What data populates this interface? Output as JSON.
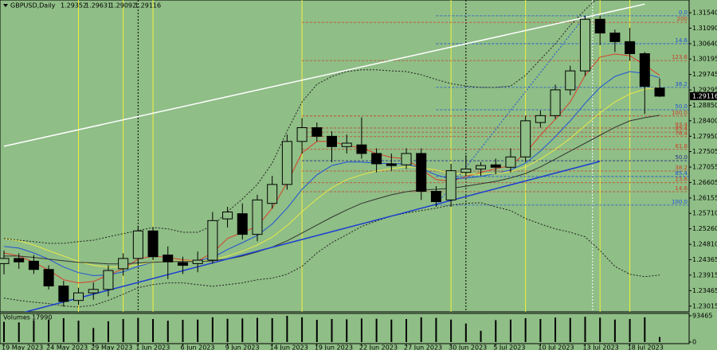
{
  "chart_data": {
    "type": "candlestick",
    "title": "GBPUSD,Daily",
    "categories": [
      "19 May 2023",
      null,
      null,
      "24 May 2023",
      null,
      null,
      "29 May 2023",
      null,
      null,
      "1 Jun 2023",
      null,
      null,
      "6 Jun 2023",
      null,
      null,
      "9 Jun 2023",
      null,
      null,
      "14 Jun 2023",
      null,
      null,
      "19 Jun 2023",
      null,
      null,
      "22 Jun 2023",
      null,
      null,
      "27 Jun 2023",
      null,
      null,
      "30 Jun 2023",
      null,
      null,
      "5 Jul 2023",
      null,
      null,
      "10 Jul 2023",
      null,
      null,
      "13 Jul 2023",
      null,
      null,
      "18 Jul 2023",
      null,
      null
    ],
    "open": [
      1.2425,
      1.244,
      1.2432,
      1.2408,
      1.236,
      1.2318,
      1.234,
      1.235,
      1.241,
      1.244,
      1.252,
      1.245,
      1.2428,
      1.2425,
      1.2435,
      1.2555,
      1.257,
      1.251,
      1.26,
      1.2655,
      1.278,
      1.282,
      1.2795,
      1.2765,
      1.277,
      1.2745,
      1.2715,
      1.2712,
      1.2745,
      1.2635,
      1.261,
      1.269,
      1.27,
      1.2712,
      1.2705,
      1.2735,
      1.2835,
      1.2855,
      1.293,
      1.2985,
      1.3135,
      1.3095,
      1.307,
      1.3035,
      1.29352
    ],
    "high": [
      1.2463,
      1.2455,
      1.245,
      1.242,
      1.2375,
      1.2355,
      1.237,
      1.242,
      1.2455,
      1.2535,
      1.253,
      1.2475,
      1.2445,
      1.246,
      1.2575,
      1.259,
      1.26,
      1.2625,
      1.268,
      1.28,
      1.2848,
      1.2835,
      1.281,
      1.28,
      1.285,
      1.276,
      1.2745,
      1.276,
      1.276,
      1.265,
      1.2715,
      1.274,
      1.272,
      1.273,
      1.276,
      1.2855,
      1.287,
      1.2945,
      1.3,
      1.3145,
      1.3145,
      1.3105,
      1.311,
      1.304,
      1.29631
    ],
    "low": [
      1.2394,
      1.241,
      1.2395,
      1.235,
      1.23,
      1.2305,
      1.232,
      1.233,
      1.239,
      1.242,
      1.2435,
      1.238,
      1.2395,
      1.24,
      1.2425,
      1.253,
      1.2495,
      1.249,
      1.2585,
      1.264,
      1.2745,
      1.278,
      1.272,
      1.2745,
      1.273,
      1.269,
      1.2695,
      1.27,
      1.261,
      1.259,
      1.259,
      1.268,
      1.268,
      1.2685,
      1.269,
      1.272,
      1.282,
      1.2845,
      1.2915,
      1.297,
      1.306,
      1.304,
      1.3015,
      1.286,
      1.29092
    ],
    "close": [
      1.244,
      1.243,
      1.2408,
      1.236,
      1.2315,
      1.234,
      1.235,
      1.2405,
      1.244,
      1.252,
      1.2445,
      1.243,
      1.242,
      1.2435,
      1.255,
      1.2575,
      1.251,
      1.261,
      1.2655,
      1.278,
      1.282,
      1.2795,
      1.2765,
      1.2775,
      1.2745,
      1.2715,
      1.271,
      1.2745,
      1.2635,
      1.2605,
      1.2695,
      1.27,
      1.271,
      1.2705,
      1.2735,
      1.284,
      1.2855,
      1.293,
      1.2985,
      1.3135,
      1.3095,
      1.307,
      1.3035,
      1.294,
      1.29116
    ],
    "up_color": "#8fbe86",
    "down_color": "#000000",
    "ylim": [
      1.2278,
      1.3191
    ],
    "yticks": [
      {
        "value": 1.3154,
        "label": "1.31540"
      },
      {
        "value": 1.3109,
        "label": "1.31090"
      },
      {
        "value": 1.3064,
        "label": "1.30640"
      },
      {
        "value": 1.30195,
        "label": "1.30195"
      },
      {
        "value": 1.29745,
        "label": "1.29745"
      },
      {
        "value": 1.29295,
        "label": "1.29295"
      },
      {
        "value": 1.2885,
        "label": "1.28850"
      },
      {
        "value": 1.284,
        "label": "1.28400"
      },
      {
        "value": 1.2795,
        "label": "1.27950"
      },
      {
        "value": 1.27505,
        "label": "1.27505"
      },
      {
        "value": 1.27055,
        "label": "1.27055"
      },
      {
        "value": 1.26605,
        "label": "1.26605"
      },
      {
        "value": 1.26155,
        "label": "1.26155"
      },
      {
        "value": 1.2571,
        "label": "1.25710"
      },
      {
        "value": 1.2526,
        "label": "1.25260"
      },
      {
        "value": 1.2481,
        "label": "1.24810"
      },
      {
        "value": 1.24365,
        "label": "1.24365"
      },
      {
        "value": 1.23915,
        "label": "1.23915"
      },
      {
        "value": 1.23465,
        "label": "1.23465"
      },
      {
        "value": 1.23015,
        "label": "1.23015"
      }
    ],
    "indicators": [
      {
        "color": "#d8402c",
        "style": "solid",
        "values": [
          1.2456,
          1.2447,
          1.2429,
          1.2406,
          1.2378,
          1.2369,
          1.2373,
          1.2392,
          1.241,
          1.2438,
          1.2447,
          1.2443,
          1.2436,
          1.2433,
          1.2456,
          1.2498,
          1.2516,
          1.2533,
          1.2586,
          1.266,
          1.2747,
          1.278,
          1.278,
          1.2768,
          1.2761,
          1.2745,
          1.2734,
          1.2729,
          1.2699,
          1.2669,
          1.2664,
          1.2678,
          1.269,
          1.2701,
          1.271,
          1.2747,
          1.2798,
          1.2844,
          1.2895,
          1.2972,
          1.3025,
          1.3034,
          1.3029,
          1.3002,
          1.2972
        ]
      },
      {
        "color": "#2152d6",
        "style": "solid",
        "values": [
          1.2475,
          1.247,
          1.2456,
          1.2438,
          1.2415,
          1.2399,
          1.239,
          1.2392,
          1.2401,
          1.2417,
          1.2429,
          1.2433,
          1.2433,
          1.2433,
          1.2443,
          1.2466,
          1.2486,
          1.2507,
          1.254,
          1.2586,
          1.2641,
          1.2683,
          1.271,
          1.272,
          1.272,
          1.2717,
          1.2715,
          1.2715,
          1.2701,
          1.2683,
          1.2671,
          1.2674,
          1.2678,
          1.2687,
          1.2697,
          1.2717,
          1.2752,
          1.2794,
          1.284,
          1.2891,
          1.2937,
          1.2969,
          1.2983,
          1.2978,
          1.2965
        ]
      },
      {
        "color": "#e8e84a",
        "style": "solid",
        "values": [
          1.2498,
          1.2491,
          1.2479,
          1.2463,
          1.2447,
          1.2431,
          1.242,
          1.2415,
          1.2415,
          1.2422,
          1.2429,
          1.2433,
          1.2433,
          1.2433,
          1.2436,
          1.2447,
          1.2461,
          1.2479,
          1.2502,
          1.2535,
          1.2576,
          1.2613,
          1.2646,
          1.2669,
          1.2683,
          1.2694,
          1.2701,
          1.2706,
          1.2704,
          1.2697,
          1.2687,
          1.2685,
          1.2685,
          1.2687,
          1.2692,
          1.2706,
          1.2729,
          1.2757,
          1.2789,
          1.2826,
          1.2863,
          1.2895,
          1.2918,
          1.2932,
          1.2937
        ]
      },
      {
        "color": "#333333",
        "style": "solid",
        "values": [
          1.2447,
          1.2447,
          1.2443,
          1.2438,
          1.2433,
          1.2429,
          1.2427,
          1.2424,
          1.2424,
          1.2427,
          1.2429,
          1.2431,
          1.2431,
          1.2431,
          1.2433,
          1.2438,
          1.2447,
          1.2459,
          1.2473,
          1.2491,
          1.2514,
          1.2537,
          1.256,
          1.2581,
          1.26,
          1.2613,
          1.2625,
          1.2634,
          1.2639,
          1.2641,
          1.2644,
          1.265,
          1.2657,
          1.2664,
          1.2674,
          1.2687,
          1.2706,
          1.2729,
          1.2752,
          1.2775,
          1.2798,
          1.2821,
          1.284,
          1.2849,
          1.2856
        ]
      },
      {
        "color": "#222222",
        "style": "dotted",
        "values": [
          1.2498,
          1.2493,
          1.2489,
          1.2484,
          1.2484,
          1.2489,
          1.2493,
          1.2503,
          1.2512,
          1.2521,
          1.253,
          1.2526,
          1.2516,
          1.2516,
          1.2535,
          1.2576,
          1.2613,
          1.2655,
          1.2717,
          1.281,
          1.2895,
          1.2946,
          1.2969,
          1.2983,
          1.2988,
          1.2988,
          1.2985,
          1.2983,
          1.2974,
          1.296,
          1.2948,
          1.2941,
          1.2937,
          1.2937,
          1.2941,
          1.2972,
          1.3018,
          1.3064,
          1.3117,
          1.3163,
          1.3203,
          1.3226,
          1.3237,
          1.3242,
          1.3237
        ]
      },
      {
        "color": "#222222",
        "style": "dotted",
        "values": [
          1.2325,
          1.2318,
          1.2313,
          1.2309,
          1.2302,
          1.2299,
          1.2304,
          1.2318,
          1.2336,
          1.2355,
          1.2364,
          1.2369,
          1.2369,
          1.2364,
          1.2359,
          1.2364,
          1.2369,
          1.2378,
          1.2383,
          1.2394,
          1.2417,
          1.2456,
          1.2486,
          1.2509,
          1.2533,
          1.2549,
          1.2563,
          1.2572,
          1.2579,
          1.2586,
          1.2595,
          1.26,
          1.2602,
          1.259,
          1.2579,
          1.2556,
          1.254,
          1.2526,
          1.2516,
          1.2503,
          1.2463,
          1.2417,
          1.2394,
          1.2387,
          1.2392
        ]
      }
    ],
    "trendlines": [
      {
        "color": "#ffffff",
        "style": "solid",
        "points": [
          [
            0,
            1.2766
          ],
          [
            43,
            1.3179
          ]
        ]
      },
      {
        "color": "#1d3fd0",
        "style": "solid",
        "points": [
          [
            1.3,
            1.2283
          ],
          [
            40,
            1.2722
          ]
        ]
      },
      {
        "color": "#2152d6",
        "style": "dotted",
        "points": [
          [
            29,
            1.2595
          ],
          [
            39,
            1.3145
          ]
        ]
      }
    ],
    "vertical_lines": [
      {
        "index": 5,
        "color": "#f2f23a",
        "style": "solid"
      },
      {
        "index": 8,
        "color": "#f2f23a",
        "style": "solid"
      },
      {
        "index": 9,
        "color": "#000000",
        "style": "dotted"
      },
      {
        "index": 10,
        "color": "#f2f23a",
        "style": "solid"
      },
      {
        "index": 20,
        "color": "#f2f23a",
        "style": "solid"
      },
      {
        "index": 30,
        "color": "#f2f23a",
        "style": "solid"
      },
      {
        "index": 31,
        "color": "#000000",
        "style": "dotted"
      },
      {
        "index": 35,
        "color": "#f2f23a",
        "style": "solid"
      },
      {
        "index": 39.5,
        "color": "#ffffff",
        "style": "dotted"
      },
      {
        "index": 40,
        "color": "#f2f23a",
        "style": "solid"
      },
      {
        "index": 42,
        "color": "#f2f23a",
        "style": "solid"
      }
    ],
    "levels": [
      {
        "label": "0.0",
        "value": 1.3145,
        "color": "#2152d6",
        "start": 29
      },
      {
        "label": "200",
        "value": 1.3126,
        "color": "#c8402c",
        "start": 20
      },
      {
        "label": "14.6",
        "value": 1.3064,
        "color": "#2152d6",
        "start": 29
      },
      {
        "label": "123.6",
        "value": 1.3015,
        "color": "#c8402c",
        "start": 20
      },
      {
        "label": "38.2",
        "value": 1.2937,
        "color": "#2152d6",
        "start": 29
      },
      {
        "label": "50.0",
        "value": 1.2872,
        "color": "#2152d6",
        "start": 29
      },
      {
        "label": "100.0",
        "value": 1.2854,
        "color": "#c8402c",
        "start": 20
      },
      {
        "label": "93.4",
        "value": 1.2819,
        "color": "#c8402c",
        "start": 20
      },
      {
        "label": "85.4",
        "value": 1.2807,
        "color": "#c8402c",
        "start": 20
      },
      {
        "label": "76.4",
        "value": 1.2794,
        "color": "#c8402c",
        "start": 20
      },
      {
        "label": "61.8",
        "value": 1.2757,
        "color": "#c8402c",
        "start": 20
      },
      {
        "label": "50.0",
        "value": 1.2724,
        "color": "#2b2b8a",
        "start": 20
      },
      {
        "label": "38.2",
        "value": 1.2694,
        "color": "#c8402c",
        "start": 20
      },
      {
        "label": "85.4",
        "value": 1.2678,
        "color": "#2152d6",
        "start": 29
      },
      {
        "label": "23.6",
        "value": 1.266,
        "color": "#c8402c",
        "start": 20
      },
      {
        "label": "14.6",
        "value": 1.2634,
        "color": "#c8402c",
        "start": 20
      },
      {
        "label": "100.0",
        "value": 1.2595,
        "color": "#2152d6",
        "start": 29
      }
    ],
    "volume": {
      "label": "Volumes",
      "color": "#000000",
      "values": [
        72000,
        70000,
        78000,
        80000,
        85000,
        76000,
        50000,
        74000,
        82000,
        86000,
        82000,
        76000,
        79000,
        80000,
        88000,
        83000,
        84000,
        86000,
        85000,
        93465,
        88000,
        79000,
        82000,
        81000,
        84000,
        83000,
        80000,
        82000,
        88000,
        86000,
        80000,
        66000,
        40000,
        78000,
        80000,
        85000,
        82000,
        87000,
        86000,
        90000,
        87000,
        80000,
        82000,
        88000,
        17990
      ],
      "ylim": [
        0,
        93465
      ],
      "yticks": [
        93465,
        0
      ]
    }
  }
}
